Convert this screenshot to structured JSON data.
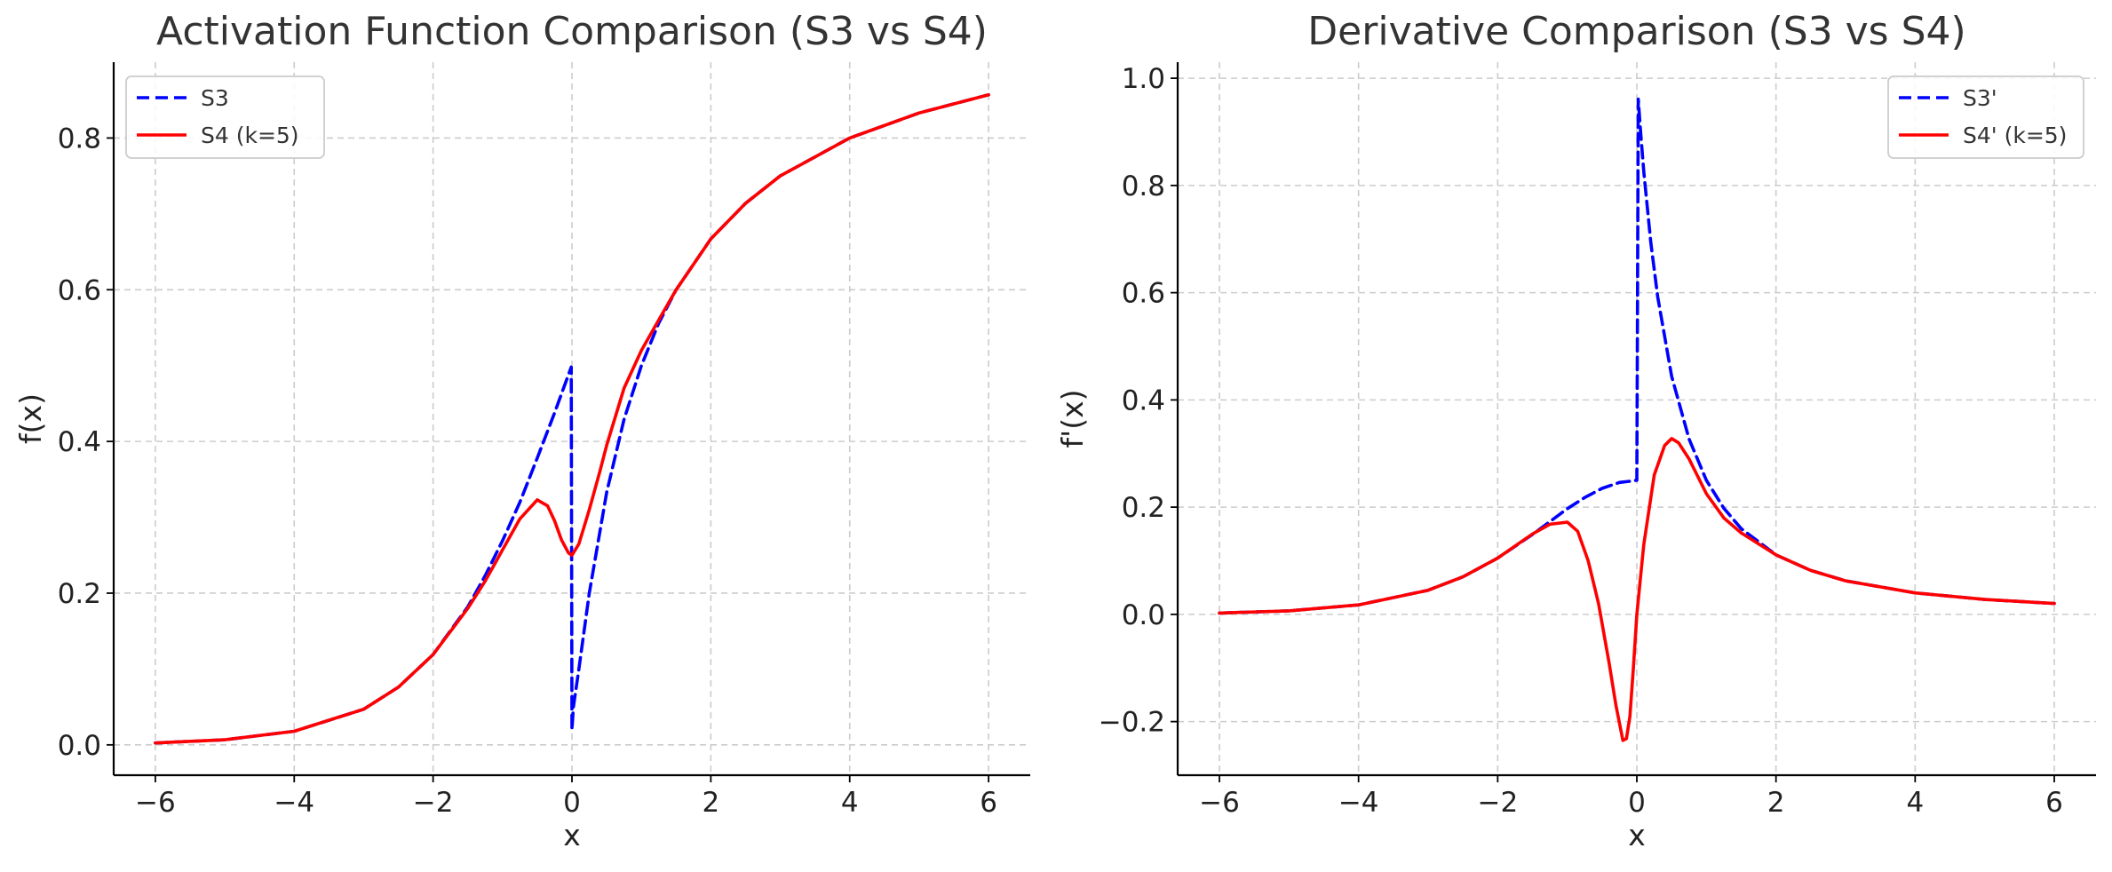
{
  "colors": {
    "s3": "#0000ff",
    "s4": "#ff0000",
    "grid": "#cccccc",
    "text": "#333333"
  },
  "chart_data": [
    {
      "type": "line",
      "title": "Activation Function Comparison (S3 vs S4)",
      "xlabel": "x",
      "ylabel": "f(x)",
      "xlim": [
        -6.6,
        6.6
      ],
      "ylim": [
        -0.04,
        0.9
      ],
      "xticks": [
        -6,
        -4,
        -2,
        0,
        2,
        4,
        6
      ],
      "xtick_labels": [
        "−6",
        "−4",
        "−2",
        "0",
        "2",
        "4",
        "6"
      ],
      "yticks": [
        0.0,
        0.2,
        0.4,
        0.6,
        0.8
      ],
      "ytick_labels": [
        "0.0",
        "0.2",
        "0.4",
        "0.6",
        "0.8"
      ],
      "grid": true,
      "legend_position": "top-left",
      "series": [
        {
          "name": "S3",
          "style": "dashed",
          "color": "#0000ff",
          "x": [
            -6,
            -5,
            -4,
            -3,
            -2.5,
            -2,
            -1.5,
            -1.25,
            -1,
            -0.75,
            -0.5,
            -0.25,
            -0.01,
            0,
            0.02,
            0.1,
            0.25,
            0.5,
            0.75,
            1,
            1.25,
            1.5,
            2,
            2.5,
            3,
            4,
            5,
            6
          ],
          "y": [
            0.0025,
            0.0067,
            0.018,
            0.047,
            0.076,
            0.119,
            0.182,
            0.223,
            0.269,
            0.32,
            0.378,
            0.438,
            0.498,
            0.02,
            0.05,
            0.1,
            0.2,
            0.333,
            0.429,
            0.5,
            0.556,
            0.6,
            0.667,
            0.714,
            0.75,
            0.8,
            0.833,
            0.857
          ]
        },
        {
          "name": "S4 (k=5)",
          "style": "solid",
          "color": "#ff0000",
          "x": [
            -6,
            -5,
            -4,
            -3,
            -2.5,
            -2,
            -1.5,
            -1.25,
            -1,
            -0.75,
            -0.5,
            -0.35,
            -0.25,
            -0.15,
            -0.05,
            0,
            0.1,
            0.25,
            0.4,
            0.5,
            0.75,
            1,
            1.25,
            1.5,
            2,
            2.5,
            3,
            4,
            5,
            6
          ],
          "y": [
            0.0025,
            0.0067,
            0.018,
            0.047,
            0.076,
            0.119,
            0.18,
            0.216,
            0.257,
            0.298,
            0.323,
            0.315,
            0.295,
            0.27,
            0.253,
            0.25,
            0.265,
            0.31,
            0.36,
            0.395,
            0.47,
            0.52,
            0.56,
            0.6,
            0.667,
            0.714,
            0.75,
            0.8,
            0.833,
            0.857
          ]
        }
      ]
    },
    {
      "type": "line",
      "title": "Derivative Comparison (S3 vs S4)",
      "xlabel": "x",
      "ylabel": "f'(x)",
      "xlim": [
        -6.6,
        6.6
      ],
      "ylim": [
        -0.3,
        1.03
      ],
      "xticks": [
        -6,
        -4,
        -2,
        0,
        2,
        4,
        6
      ],
      "xtick_labels": [
        "−6",
        "−4",
        "−2",
        "0",
        "2",
        "4",
        "6"
      ],
      "yticks": [
        -0.2,
        0.0,
        0.2,
        0.4,
        0.6,
        0.8,
        1.0
      ],
      "ytick_labels": [
        "−0.2",
        "0.0",
        "0.2",
        "0.4",
        "0.6",
        "0.8",
        "1.0"
      ],
      "grid": true,
      "legend_position": "top-right",
      "series": [
        {
          "name": "S3'",
          "style": "dashed",
          "color": "#0000ff",
          "x": [
            -6,
            -5,
            -4,
            -3,
            -2.5,
            -2,
            -1.5,
            -1,
            -0.75,
            -0.5,
            -0.25,
            -0.05,
            -0.01,
            0.0,
            0.02,
            0.05,
            0.1,
            0.2,
            0.3,
            0.5,
            0.75,
            1,
            1.25,
            1.5,
            2,
            2.5,
            3,
            4,
            5,
            6
          ],
          "y": [
            0.0025,
            0.0066,
            0.0177,
            0.045,
            0.07,
            0.105,
            0.149,
            0.197,
            0.218,
            0.235,
            0.246,
            0.249,
            0.25,
            0.25,
            0.961,
            0.907,
            0.826,
            0.694,
            0.592,
            0.444,
            0.327,
            0.25,
            0.198,
            0.16,
            0.111,
            0.082,
            0.0625,
            0.04,
            0.0278,
            0.0204
          ]
        },
        {
          "name": "S4' (k=5)",
          "style": "solid",
          "color": "#ff0000",
          "x": [
            -6,
            -5,
            -4,
            -3,
            -2.5,
            -2,
            -1.5,
            -1.25,
            -1,
            -0.85,
            -0.7,
            -0.55,
            -0.4,
            -0.3,
            -0.2,
            -0.15,
            -0.1,
            -0.05,
            0,
            0.1,
            0.25,
            0.4,
            0.5,
            0.6,
            0.75,
            1,
            1.25,
            1.5,
            2,
            2.5,
            3,
            4,
            5,
            6
          ],
          "y": [
            0.0025,
            0.0066,
            0.0177,
            0.045,
            0.07,
            0.105,
            0.15,
            0.168,
            0.172,
            0.155,
            0.1,
            0.02,
            -0.09,
            -0.17,
            -0.235,
            -0.232,
            -0.19,
            -0.1,
            0.0,
            0.13,
            0.26,
            0.315,
            0.328,
            0.32,
            0.29,
            0.225,
            0.18,
            0.152,
            0.111,
            0.082,
            0.0625,
            0.04,
            0.0278,
            0.0204
          ]
        }
      ]
    }
  ]
}
